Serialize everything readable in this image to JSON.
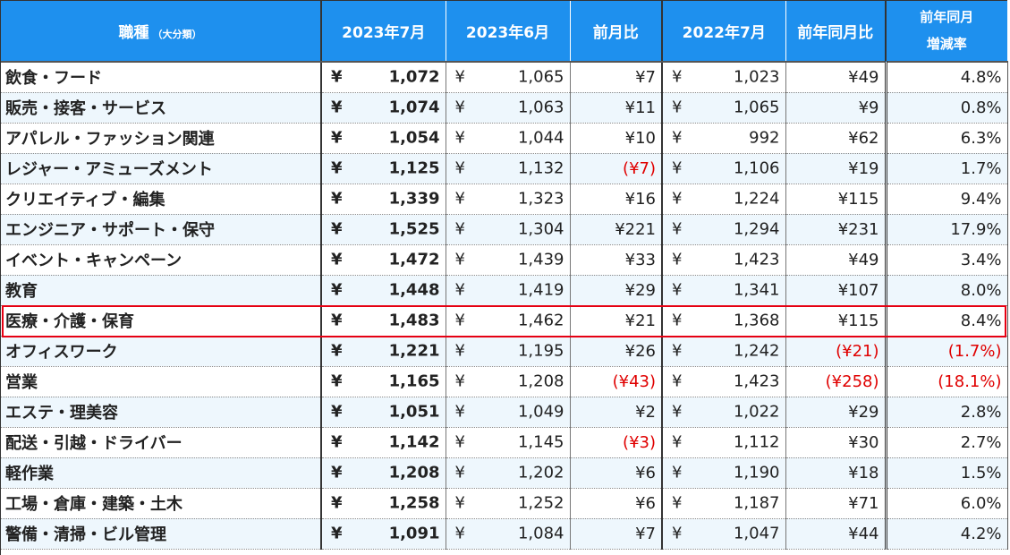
{
  "header": {
    "category": "職種",
    "category_sub": "（大分類）",
    "jul2023": "2023年7月",
    "jun2023": "2023年6月",
    "mom": "前月比",
    "jul2022": "2022年7月",
    "yoy_diff": "前年同月比",
    "yoy_rate_line1": "前年同月",
    "yoy_rate_line2": "増減率"
  },
  "currency_symbol": "¥",
  "highlight_color": "#e60012",
  "header_color": "#1e90ee",
  "negative_color": "#e00000",
  "rows": [
    {
      "category": "飲食・フード",
      "jul2023": "1,072",
      "jun2023": "1,065",
      "mom": "¥7",
      "mom_neg": false,
      "jul2022": "1,023",
      "yoy_diff": "¥49",
      "yoy_diff_neg": false,
      "yoy_rate": "4.8%",
      "yoy_rate_neg": false
    },
    {
      "category": "販売・接客・サービス",
      "jul2023": "1,074",
      "jun2023": "1,063",
      "mom": "¥11",
      "mom_neg": false,
      "jul2022": "1,065",
      "yoy_diff": "¥9",
      "yoy_diff_neg": false,
      "yoy_rate": "0.8%",
      "yoy_rate_neg": false
    },
    {
      "category": "アパレル・ファッション関連",
      "jul2023": "1,054",
      "jun2023": "1,044",
      "mom": "¥10",
      "mom_neg": false,
      "jul2022": "992",
      "yoy_diff": "¥62",
      "yoy_diff_neg": false,
      "yoy_rate": "6.3%",
      "yoy_rate_neg": false
    },
    {
      "category": "レジャー・アミューズメント",
      "jul2023": "1,125",
      "jun2023": "1,132",
      "mom": "(¥7)",
      "mom_neg": true,
      "jul2022": "1,106",
      "yoy_diff": "¥19",
      "yoy_diff_neg": false,
      "yoy_rate": "1.7%",
      "yoy_rate_neg": false
    },
    {
      "category": "クリエイティブ・編集",
      "jul2023": "1,339",
      "jun2023": "1,323",
      "mom": "¥16",
      "mom_neg": false,
      "jul2022": "1,224",
      "yoy_diff": "¥115",
      "yoy_diff_neg": false,
      "yoy_rate": "9.4%",
      "yoy_rate_neg": false
    },
    {
      "category": "エンジニア・サポート・保守",
      "jul2023": "1,525",
      "jun2023": "1,304",
      "mom": "¥221",
      "mom_neg": false,
      "jul2022": "1,294",
      "yoy_diff": "¥231",
      "yoy_diff_neg": false,
      "yoy_rate": "17.9%",
      "yoy_rate_neg": false
    },
    {
      "category": "イベント・キャンペーン",
      "jul2023": "1,472",
      "jun2023": "1,439",
      "mom": "¥33",
      "mom_neg": false,
      "jul2022": "1,423",
      "yoy_diff": "¥49",
      "yoy_diff_neg": false,
      "yoy_rate": "3.4%",
      "yoy_rate_neg": false
    },
    {
      "category": "教育",
      "jul2023": "1,448",
      "jun2023": "1,419",
      "mom": "¥29",
      "mom_neg": false,
      "jul2022": "1,341",
      "yoy_diff": "¥107",
      "yoy_diff_neg": false,
      "yoy_rate": "8.0%",
      "yoy_rate_neg": false
    },
    {
      "category": "医療・介護・保育",
      "jul2023": "1,483",
      "jun2023": "1,462",
      "mom": "¥21",
      "mom_neg": false,
      "jul2022": "1,368",
      "yoy_diff": "¥115",
      "yoy_diff_neg": false,
      "yoy_rate": "8.4%",
      "yoy_rate_neg": false,
      "highlighted": true
    },
    {
      "category": "オフィスワーク",
      "jul2023": "1,221",
      "jun2023": "1,195",
      "mom": "¥26",
      "mom_neg": false,
      "jul2022": "1,242",
      "yoy_diff": "(¥21)",
      "yoy_diff_neg": true,
      "yoy_rate": "(1.7%)",
      "yoy_rate_neg": true
    },
    {
      "category": "営業",
      "jul2023": "1,165",
      "jun2023": "1,208",
      "mom": "(¥43)",
      "mom_neg": true,
      "jul2022": "1,423",
      "yoy_diff": "(¥258)",
      "yoy_diff_neg": true,
      "yoy_rate": "(18.1%)",
      "yoy_rate_neg": true
    },
    {
      "category": "エステ・理美容",
      "jul2023": "1,051",
      "jun2023": "1,049",
      "mom": "¥2",
      "mom_neg": false,
      "jul2022": "1,022",
      "yoy_diff": "¥29",
      "yoy_diff_neg": false,
      "yoy_rate": "2.8%",
      "yoy_rate_neg": false
    },
    {
      "category": "配送・引越・ドライバー",
      "jul2023": "1,142",
      "jun2023": "1,145",
      "mom": "(¥3)",
      "mom_neg": true,
      "jul2022": "1,112",
      "yoy_diff": "¥30",
      "yoy_diff_neg": false,
      "yoy_rate": "2.7%",
      "yoy_rate_neg": false
    },
    {
      "category": "軽作業",
      "jul2023": "1,208",
      "jun2023": "1,202",
      "mom": "¥6",
      "mom_neg": false,
      "jul2022": "1,190",
      "yoy_diff": "¥18",
      "yoy_diff_neg": false,
      "yoy_rate": "1.5%",
      "yoy_rate_neg": false
    },
    {
      "category": "工場・倉庫・建築・土木",
      "jul2023": "1,258",
      "jun2023": "1,252",
      "mom": "¥6",
      "mom_neg": false,
      "jul2022": "1,187",
      "yoy_diff": "¥71",
      "yoy_diff_neg": false,
      "yoy_rate": "6.0%",
      "yoy_rate_neg": false
    },
    {
      "category": "警備・清掃・ビル管理",
      "jul2023": "1,091",
      "jun2023": "1,084",
      "mom": "¥7",
      "mom_neg": false,
      "jul2022": "1,047",
      "yoy_diff": "¥44",
      "yoy_diff_neg": false,
      "yoy_rate": "4.2%",
      "yoy_rate_neg": false
    }
  ]
}
